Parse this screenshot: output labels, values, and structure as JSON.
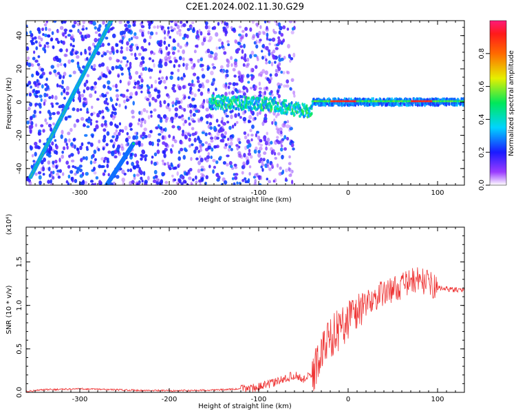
{
  "figure": {
    "title": "C2E1.2024.002.11.30.G29"
  },
  "chart_data": [
    {
      "type": "heatmap",
      "xlabel": "Height of straight line (km)",
      "ylabel": "Frequency (Hz)",
      "xlim": [
        -360,
        130
      ],
      "ylim": [
        -50,
        49
      ],
      "xticks": [
        -300,
        -200,
        -100,
        0,
        100
      ],
      "yticks": [
        -40,
        -20,
        0,
        20,
        40
      ],
      "colorbar": {
        "label": "Normalized spectral amplitude",
        "range": [
          0,
          1
        ],
        "ticks": [
          0.0,
          0.2,
          0.4,
          0.6,
          0.8
        ],
        "colormap": "rainbow (white → violet → blue → cyan → green → yellow → red → pink)"
      },
      "features": [
        {
          "name": "carrier",
          "x": [
            -155,
            130
          ],
          "freq_hz": 0,
          "level_peak": 0.95
        },
        {
          "name": "diagonal-stripe-1",
          "x_start": -355,
          "y_start": -45,
          "x_end": -265,
          "y_end": 49,
          "level": 0.5
        },
        {
          "name": "diagonal-stripe-2",
          "x_start": -270,
          "y_start": -50,
          "x_end": -240,
          "y_end": -25,
          "level": 0.45
        },
        {
          "name": "noise-cloud",
          "x": [
            -360,
            -60
          ],
          "y": [
            -50,
            49
          ],
          "level": 0.2
        }
      ]
    },
    {
      "type": "line",
      "xlabel": "Height of straight line (km)",
      "ylabel": "SNR (10 * v/v)",
      "scale_label": "(x10⁴)",
      "xlim": [
        -360,
        130
      ],
      "ylim": [
        0,
        1.9
      ],
      "xticks": [
        -300,
        -200,
        -100,
        0,
        100
      ],
      "yticks": [
        0.0,
        0.5,
        1.0,
        1.5
      ],
      "line_color": "#ee3333",
      "series": [
        {
          "x": [
            -360,
            -340,
            -300,
            -260,
            -220,
            -180,
            -140,
            -120,
            -100,
            -80,
            -60,
            -50,
            -40,
            -30,
            -20,
            -10,
            0,
            20,
            40,
            60,
            70,
            80,
            90,
            100,
            110,
            120,
            130
          ],
          "values": [
            0.01,
            0.03,
            0.04,
            0.03,
            0.02,
            0.02,
            0.03,
            0.04,
            0.06,
            0.12,
            0.2,
            0.15,
            0.2,
            0.45,
            0.65,
            0.72,
            0.85,
            1.02,
            1.15,
            1.22,
            1.28,
            1.3,
            1.25,
            1.2,
            1.19,
            1.18,
            1.17
          ]
        }
      ]
    }
  ]
}
